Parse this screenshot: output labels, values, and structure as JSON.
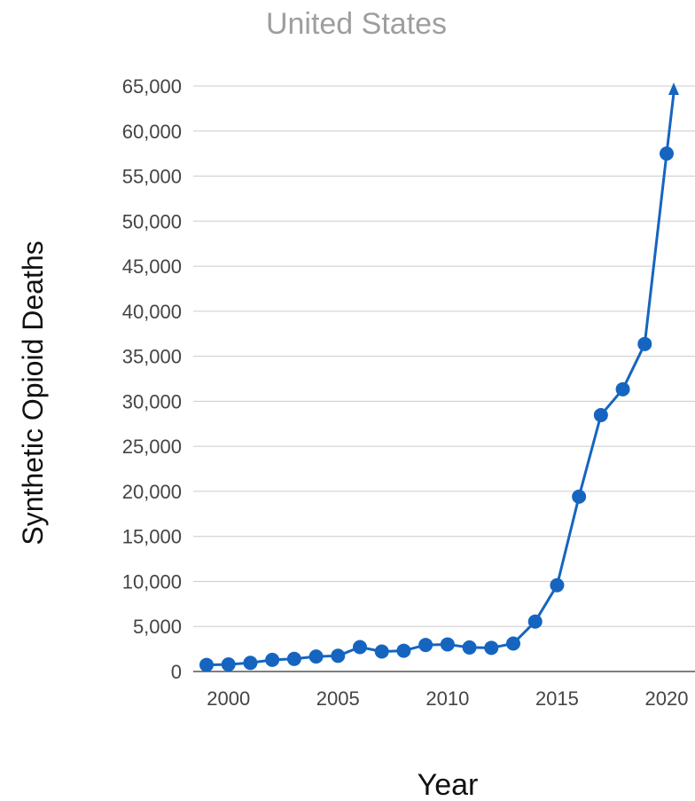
{
  "chart_data": {
    "type": "line",
    "title": "United States",
    "xlabel": "Year",
    "ylabel": "Synthetic Opioid Deaths",
    "ylim": [
      0,
      65000
    ],
    "y_ticks": [
      "0",
      "5,000",
      "10,000",
      "15,000",
      "20,000",
      "25,000",
      "30,000",
      "35,000",
      "40,000",
      "45,000",
      "50,000",
      "55,000",
      "60,000",
      "65,000"
    ],
    "x_ticks": [
      "2000",
      "2005",
      "2010",
      "2015",
      "2020"
    ],
    "grid": true,
    "line_color": "#1565c0",
    "x": [
      1999,
      2000,
      2001,
      2002,
      2003,
      2004,
      2005,
      2006,
      2007,
      2008,
      2009,
      2010,
      2011,
      2012,
      2013,
      2014,
      2015,
      2016,
      2017,
      2018,
      2019,
      2020
    ],
    "values": [
      730,
      782,
      957,
      1295,
      1400,
      1664,
      1742,
      2707,
      2213,
      2306,
      2946,
      3007,
      2666,
      2628,
      3105,
      5544,
      9580,
      19413,
      28466,
      31335,
      36359,
      57500
    ],
    "continues_beyond": 65000
  }
}
